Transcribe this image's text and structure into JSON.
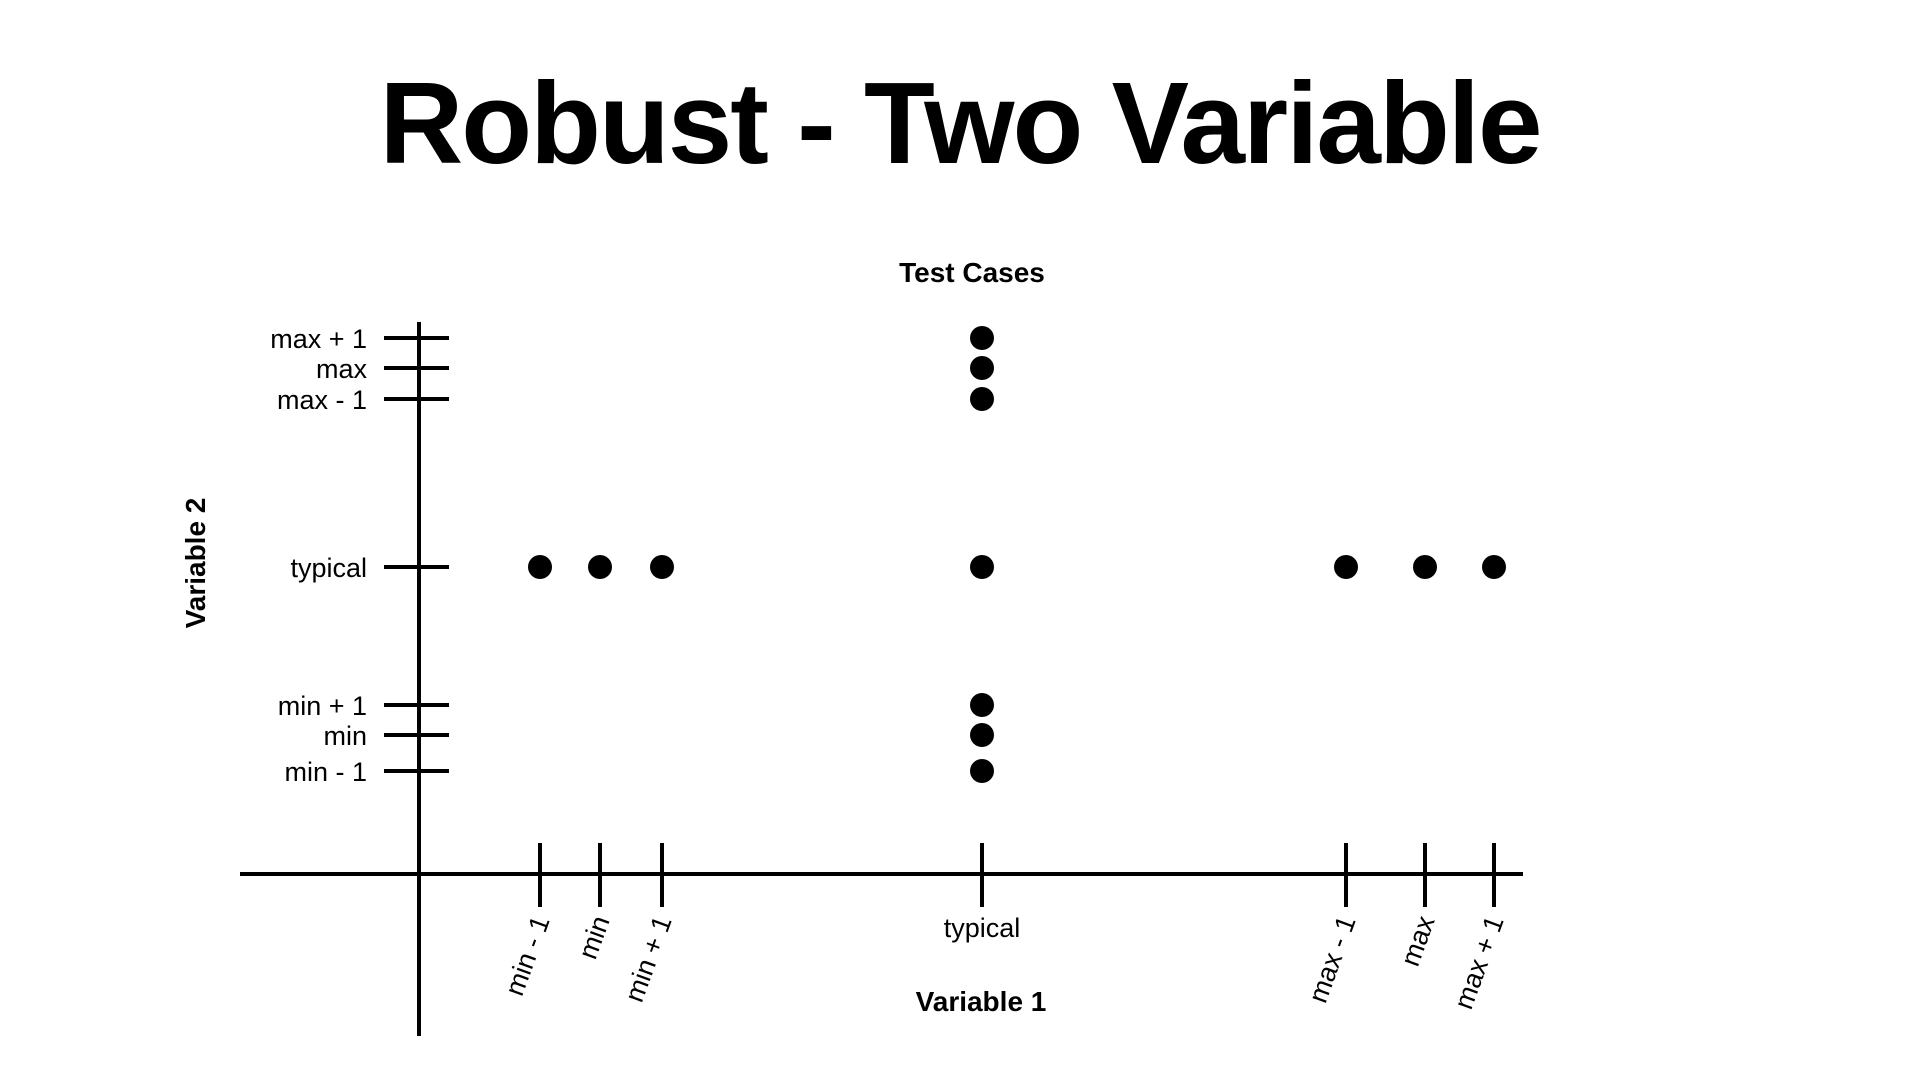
{
  "title": "Robust - Two Variable",
  "chart_data": {
    "type": "scatter",
    "title": "Test Cases",
    "xlabel": "Variable 1",
    "ylabel": "Variable 2",
    "x_ticks": [
      "min - 1",
      "min",
      "min + 1",
      "typical",
      "max - 1",
      "max",
      "max + 1"
    ],
    "y_ticks": [
      "max + 1",
      "max",
      "max - 1",
      "typical",
      "min + 1",
      "min",
      "min - 1"
    ],
    "points": [
      {
        "x": "typical",
        "y": "max + 1"
      },
      {
        "x": "typical",
        "y": "max"
      },
      {
        "x": "typical",
        "y": "max - 1"
      },
      {
        "x": "min - 1",
        "y": "typical"
      },
      {
        "x": "min",
        "y": "typical"
      },
      {
        "x": "min + 1",
        "y": "typical"
      },
      {
        "x": "typical",
        "y": "typical"
      },
      {
        "x": "max - 1",
        "y": "typical"
      },
      {
        "x": "max",
        "y": "typical"
      },
      {
        "x": "max + 1",
        "y": "typical"
      },
      {
        "x": "typical",
        "y": "min + 1"
      },
      {
        "x": "typical",
        "y": "min"
      },
      {
        "x": "typical",
        "y": "min - 1"
      }
    ]
  }
}
